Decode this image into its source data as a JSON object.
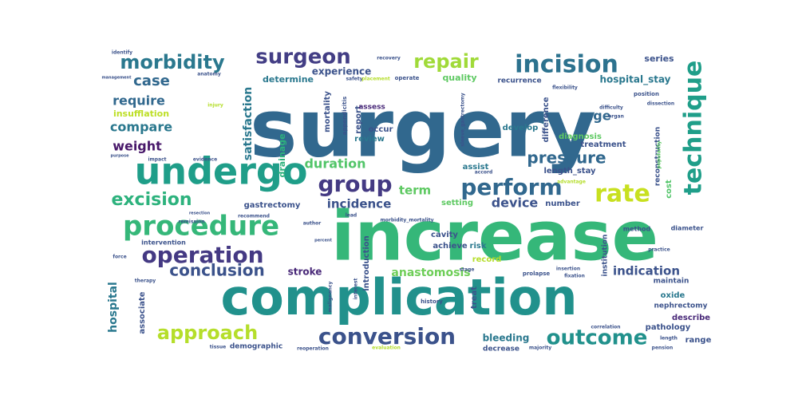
{
  "words": [
    {
      "text": "surgery",
      "color": "#31688e"
    },
    {
      "text": "increase",
      "color": "#35b779"
    },
    {
      "text": "complication",
      "color": "#21918c"
    },
    {
      "text": "undergo",
      "color": "#1f9e89"
    },
    {
      "text": "procedure",
      "color": "#35b779"
    },
    {
      "text": "technique",
      "color": "#1f9e89"
    },
    {
      "text": "incision",
      "color": "#2c728e"
    },
    {
      "text": "group",
      "color": "#443a83"
    },
    {
      "text": "perform",
      "color": "#31688e"
    },
    {
      "text": "rate",
      "color": "#c8e020"
    },
    {
      "text": "operation",
      "color": "#443983"
    },
    {
      "text": "conversion",
      "color": "#3b528b"
    },
    {
      "text": "outcome",
      "color": "#21918c"
    },
    {
      "text": "approach",
      "color": "#b5de2b"
    },
    {
      "text": "surgeon",
      "color": "#433e85"
    },
    {
      "text": "morbidity",
      "color": "#2a788e"
    },
    {
      "text": "repair",
      "color": "#a0da39"
    },
    {
      "text": "excision",
      "color": "#2db27d"
    },
    {
      "text": "conclusion",
      "color": "#3b528b"
    },
    {
      "text": "pressure",
      "color": "#31688e"
    },
    {
      "text": "case",
      "color": "#31688e"
    },
    {
      "text": "require",
      "color": "#31688e"
    },
    {
      "text": "weight",
      "color": "#48186a"
    },
    {
      "text": "compare",
      "color": "#2a788e"
    },
    {
      "text": "duration",
      "color": "#52c569"
    },
    {
      "text": "satisfaction",
      "color": "#2a788e"
    },
    {
      "text": "age",
      "color": "#31688e"
    },
    {
      "text": "device",
      "color": "#3b528b"
    },
    {
      "text": "term",
      "color": "#5ec962"
    },
    {
      "text": "incidence",
      "color": "#3b528b"
    },
    {
      "text": "anastomosis",
      "color": "#6ece58"
    },
    {
      "text": "indication",
      "color": "#3b528b"
    },
    {
      "text": "hospital",
      "color": "#2a788e"
    },
    {
      "text": "stroke",
      "color": "#482878"
    },
    {
      "text": "bleeding",
      "color": "#2a788e"
    },
    {
      "text": "outcome",
      "color": "#21918c"
    },
    {
      "text": "hospital_stay",
      "color": "#2a788e"
    },
    {
      "text": "experience",
      "color": "#3b528b"
    },
    {
      "text": "determine",
      "color": "#2a788e"
    },
    {
      "text": "quality",
      "color": "#5ec962"
    },
    {
      "text": "series",
      "color": "#3b528b"
    },
    {
      "text": "insufflation",
      "color": "#bddf26"
    },
    {
      "text": "drainage",
      "color": "#2db27d"
    },
    {
      "text": "mortality",
      "color": "#3b528b"
    },
    {
      "text": "report",
      "color": "#3b528b"
    },
    {
      "text": "review",
      "color": "#2a788e"
    },
    {
      "text": "occur",
      "color": "#3b528b"
    },
    {
      "text": "difference",
      "color": "#3b528b"
    },
    {
      "text": "diagnosis",
      "color": "#5ec962"
    },
    {
      "text": "treatment",
      "color": "#3b528b"
    },
    {
      "text": "develop",
      "color": "#2a788e"
    },
    {
      "text": "reconstruction",
      "color": "#3b528b"
    },
    {
      "text": "assist",
      "color": "#2a788e"
    },
    {
      "text": "length_stay",
      "color": "#3b528b"
    },
    {
      "text": "setting",
      "color": "#5ec962"
    },
    {
      "text": "number",
      "color": "#3b528b"
    },
    {
      "text": "cost",
      "color": "#52c569"
    },
    {
      "text": "gastrectomy",
      "color": "#3b528b"
    },
    {
      "text": "cavity",
      "color": "#3b528b"
    },
    {
      "text": "achieve",
      "color": "#3b528b"
    },
    {
      "text": "risk",
      "color": "#2a788e"
    },
    {
      "text": "record",
      "color": "#b5de2b"
    },
    {
      "text": "institution",
      "color": "#3b528b"
    },
    {
      "text": "introduction",
      "color": "#3b528b"
    },
    {
      "text": "treat",
      "color": "#3b528b"
    },
    {
      "text": "associate",
      "color": "#3b528b"
    },
    {
      "text": "oxide",
      "color": "#2a788e"
    },
    {
      "text": "nephrectomy",
      "color": "#3b528b"
    },
    {
      "text": "describe",
      "color": "#482878"
    },
    {
      "text": "pathology",
      "color": "#3b528b"
    },
    {
      "text": "range",
      "color": "#3b528b"
    },
    {
      "text": "maintain",
      "color": "#3b528b"
    },
    {
      "text": "demographic",
      "color": "#3b528b"
    },
    {
      "text": "decrease",
      "color": "#3b528b"
    },
    {
      "text": "recurrence",
      "color": "#3b528b"
    },
    {
      "text": "diameter",
      "color": "#3b528b"
    },
    {
      "text": "method",
      "color": "#3b528b"
    },
    {
      "text": "assess",
      "color": "#482878"
    },
    {
      "text": "intervention",
      "color": "#3b528b"
    },
    {
      "text": "prolapse",
      "color": "#3b528b"
    },
    {
      "text": "history",
      "color": "#3b528b"
    },
    {
      "text": "position",
      "color": "#3b528b"
    },
    {
      "text": "flexibility",
      "color": "#3b528b"
    },
    {
      "text": "dissection",
      "color": "#3b528b"
    },
    {
      "text": "difficulty",
      "color": "#3b528b"
    },
    {
      "text": "advantage",
      "color": "#b5de2b"
    },
    {
      "text": "popularity",
      "color": "#5ec962"
    },
    {
      "text": "correlation",
      "color": "#3b528b"
    },
    {
      "text": "sleeve_gastrectomy",
      "color": "#3b528b"
    },
    {
      "text": "appendicitis",
      "color": "#3b528b"
    },
    {
      "text": "tissue",
      "color": "#3b528b"
    },
    {
      "text": "force",
      "color": "#3b528b"
    },
    {
      "text": "therapy",
      "color": "#3b528b"
    },
    {
      "text": "identify",
      "color": "#3b528b"
    },
    {
      "text": "management",
      "color": "#3b528b"
    },
    {
      "text": "injury",
      "color": "#b5de2b"
    },
    {
      "text": "evidence",
      "color": "#3b528b"
    },
    {
      "text": "purpose",
      "color": "#3b528b"
    },
    {
      "text": "impact",
      "color": "#3b528b"
    },
    {
      "text": "safety",
      "color": "#3b528b"
    },
    {
      "text": "placement",
      "color": "#b5de2b"
    },
    {
      "text": "operate",
      "color": "#3b528b"
    },
    {
      "text": "morbidity_mortality",
      "color": "#3b528b"
    },
    {
      "text": "recommend",
      "color": "#3b528b"
    },
    {
      "text": "interest",
      "color": "#3b528b"
    },
    {
      "text": "malignancy",
      "color": "#3b528b"
    },
    {
      "text": "percent",
      "color": "#3b528b"
    },
    {
      "text": "author",
      "color": "#3b528b"
    },
    {
      "text": "lead",
      "color": "#3b528b"
    },
    {
      "text": "stage",
      "color": "#3b528b"
    },
    {
      "text": "organ",
      "color": "#3b528b"
    },
    {
      "text": "practice",
      "color": "#3b528b"
    },
    {
      "text": "remission",
      "color": "#3b528b"
    },
    {
      "text": "length",
      "color": "#3b528b"
    },
    {
      "text": "pension",
      "color": "#3b528b"
    },
    {
      "text": "resection",
      "color": "#3b528b"
    },
    {
      "text": "evaluation",
      "color": "#b5de2b"
    },
    {
      "text": "majority",
      "color": "#3b528b"
    },
    {
      "text": "insertion",
      "color": "#3b528b"
    },
    {
      "text": "fixation",
      "color": "#3b528b"
    },
    {
      "text": "reoperation",
      "color": "#3b528b"
    },
    {
      "text": "recovery",
      "color": "#3b528b"
    },
    {
      "text": "accord",
      "color": "#3b528b"
    },
    {
      "text": "anatomy",
      "color": "#3b528b"
    }
  ]
}
